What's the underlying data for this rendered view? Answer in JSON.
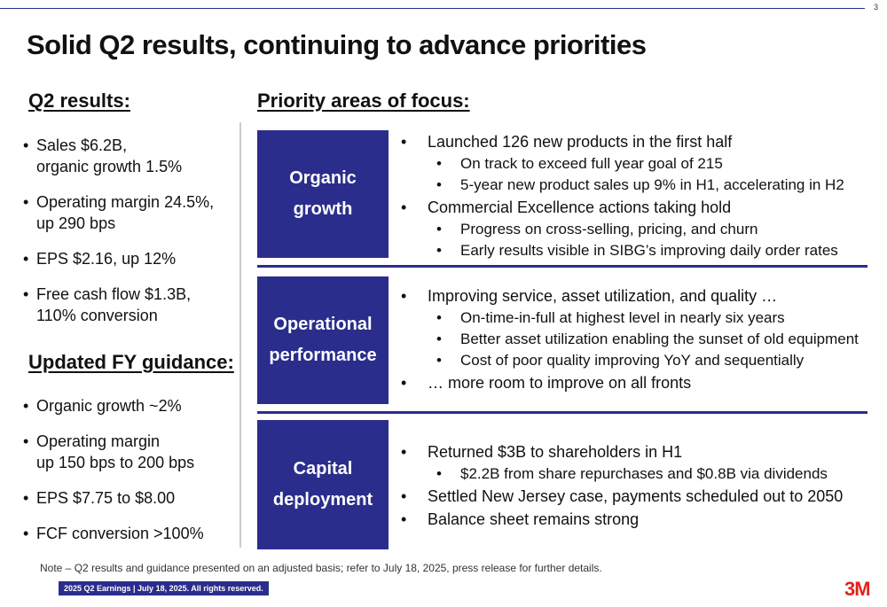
{
  "page_number": "3",
  "title": "Solid Q2 results, continuing to advance priorities",
  "left": {
    "q2_heading": "Q2 results:",
    "q2_items": [
      [
        "Sales $6.2B,",
        "organic growth 1.5%"
      ],
      [
        "Operating margin 24.5%,",
        "up 290 bps"
      ],
      [
        "EPS $2.16, up 12%"
      ],
      [
        "Free cash flow $1.3B,",
        "110% conversion"
      ]
    ],
    "fy_heading": "Updated FY guidance:",
    "fy_items": [
      [
        "Organic growth ~2%"
      ],
      [
        "Operating margin",
        "up 150 bps to 200 bps"
      ],
      [
        "EPS $7.75 to $8.00"
      ],
      [
        "FCF conversion >100%"
      ]
    ]
  },
  "priority_heading": "Priority areas of focus:",
  "rows": [
    {
      "label_lines": [
        "Organic",
        "growth"
      ],
      "bullets": [
        {
          "level": 1,
          "text": "Launched 126 new products in the first half"
        },
        {
          "level": 2,
          "text": "On track to exceed full year goal of 215"
        },
        {
          "level": 2,
          "text": "5-year new product sales up 9% in H1, accelerating in H2"
        },
        {
          "level": 1,
          "text": "Commercial Excellence actions taking hold"
        },
        {
          "level": 2,
          "text": "Progress on cross-selling, pricing, and churn"
        },
        {
          "level": 2,
          "text": "Early results visible in SIBG’s improving daily order rates"
        }
      ]
    },
    {
      "label_lines": [
        "Operational",
        "performance"
      ],
      "bullets": [
        {
          "level": 1,
          "text": "Improving service, asset utilization, and quality …"
        },
        {
          "level": 2,
          "text": "On-time-in-full at highest level in nearly six years"
        },
        {
          "level": 2,
          "text": "Better asset utilization enabling the sunset of old equipment"
        },
        {
          "level": 2,
          "text": "Cost of poor quality improving YoY and sequentially"
        },
        {
          "level": 1,
          "text": "… more room to improve on all fronts"
        }
      ]
    },
    {
      "label_lines": [
        "Capital",
        "deployment"
      ],
      "bullets": [
        {
          "level": 1,
          "text": "Returned $3B to shareholders in H1"
        },
        {
          "level": 2,
          "text": "$2.2B from share repurchases and $0.8B via dividends"
        },
        {
          "level": 1,
          "text": "Settled New Jersey case, payments scheduled out to 2050"
        },
        {
          "level": 1,
          "text": "Balance sheet remains strong"
        }
      ]
    }
  ],
  "note": "Note – Q2 results and guidance presented on an adjusted basis; refer to July 18, 2025, press release for further details.",
  "footer": "2025 Q2 Earnings | July 18, 2025. All rights reserved.",
  "logo_text": "3M",
  "colors": {
    "brand_navy": "#2b2d8c",
    "logo_red": "#e2231a"
  }
}
